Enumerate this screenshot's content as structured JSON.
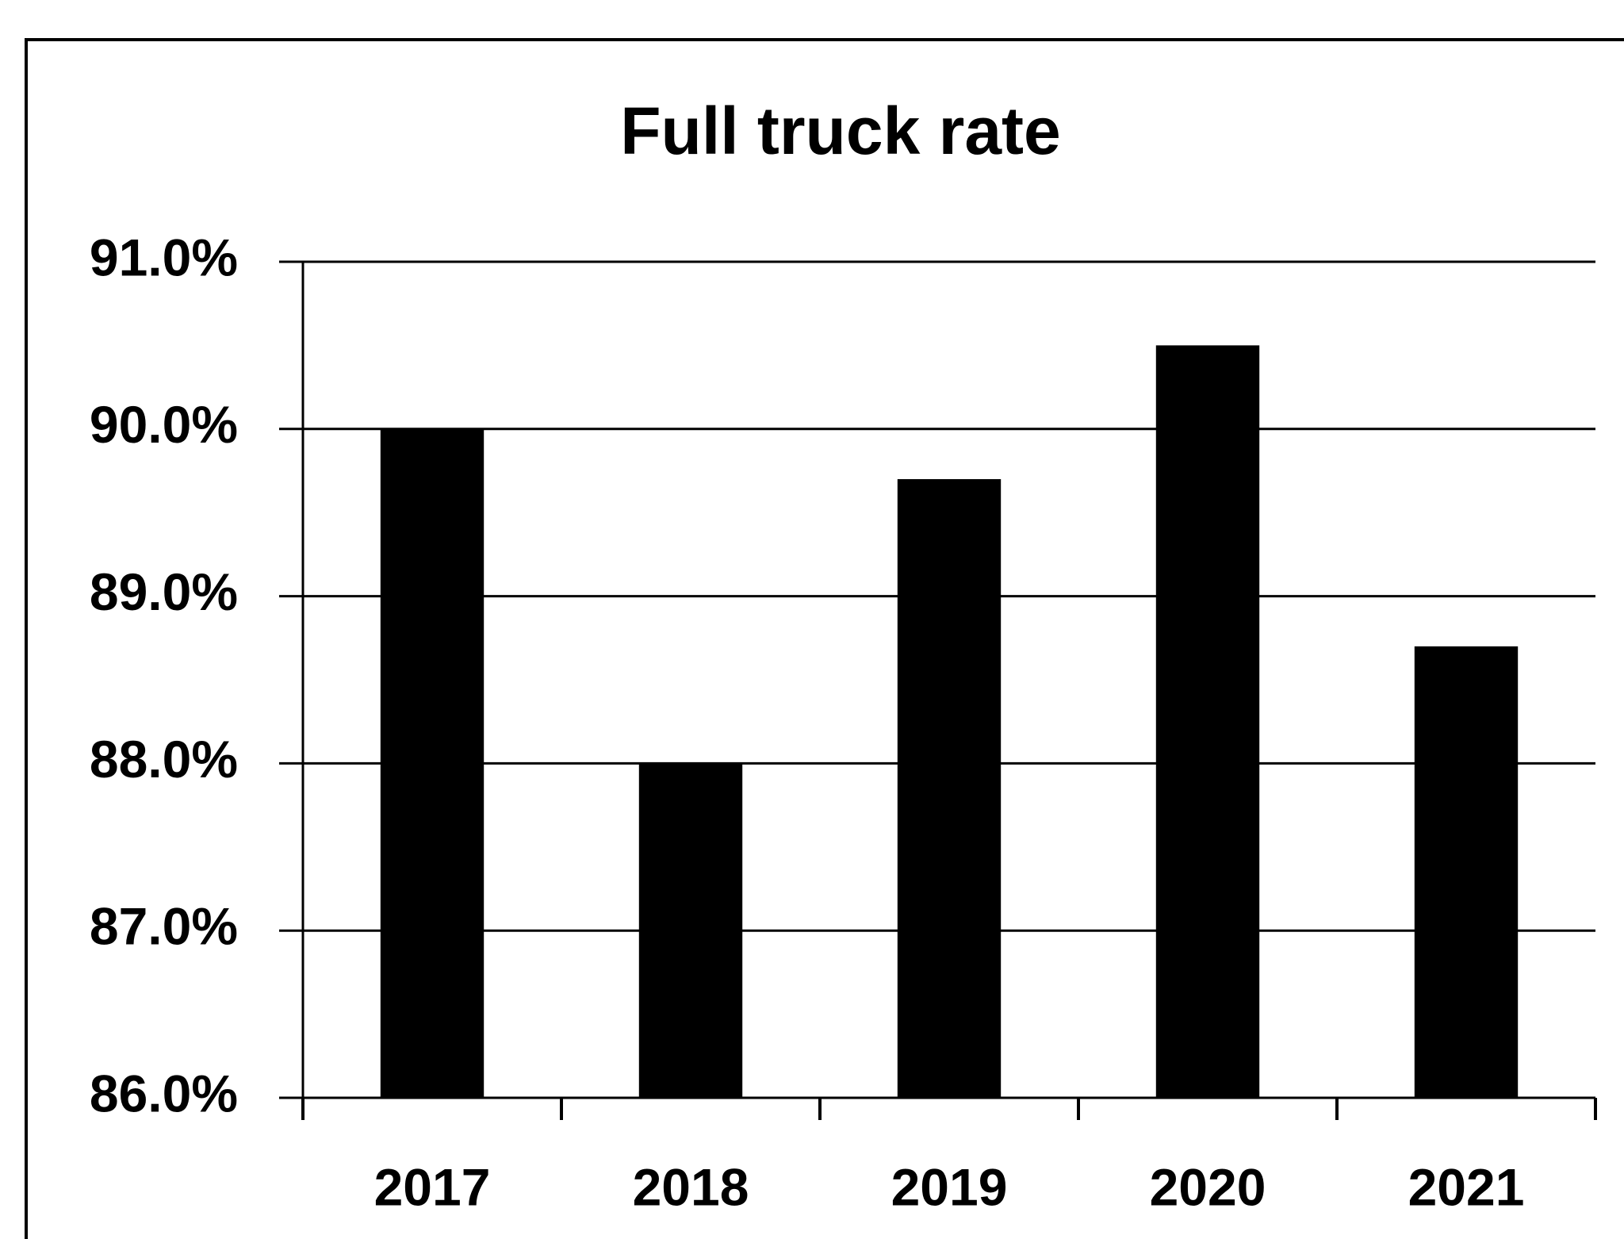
{
  "chart_data": {
    "type": "bar",
    "title": "Full truck rate",
    "categories": [
      "2017",
      "2018",
      "2019",
      "2020",
      "2021"
    ],
    "values": [
      90.0,
      88.0,
      89.7,
      90.5,
      88.7
    ],
    "color": "#000000",
    "ylim": [
      86,
      91
    ],
    "yticks": [
      {
        "value": 86,
        "label": "86.0%"
      },
      {
        "value": 87,
        "label": "87.0%"
      },
      {
        "value": 88,
        "label": "88.0%"
      },
      {
        "value": 89,
        "label": "89.0%"
      },
      {
        "value": 90,
        "label": "90.0%"
      },
      {
        "value": 91,
        "label": "91.0%"
      }
    ],
    "grid": true
  }
}
